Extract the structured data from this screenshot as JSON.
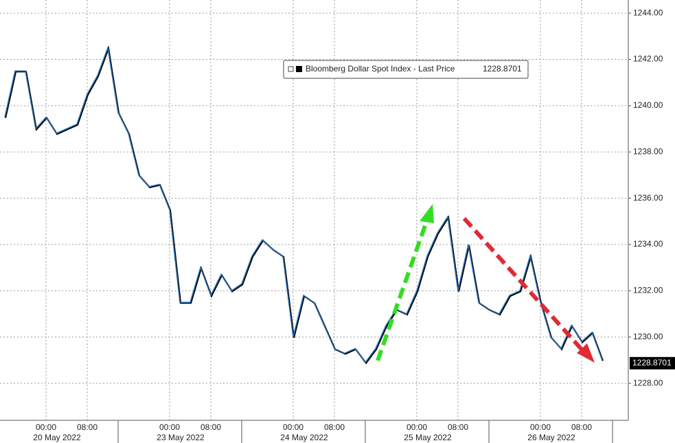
{
  "chart_data": {
    "type": "line",
    "categories": [
      null,
      null,
      null,
      null,
      "00:00",
      null,
      null,
      null,
      "08:00",
      null,
      null,
      null,
      null,
      null,
      null,
      null,
      "00:00",
      null,
      null,
      null,
      "08:00",
      null,
      null,
      null,
      null,
      null,
      null,
      null,
      "00:00",
      null,
      null,
      null,
      "08:00",
      null,
      null,
      null,
      null,
      null,
      null,
      null,
      "00:00",
      null,
      null,
      null,
      "08:00",
      null,
      null,
      null,
      null,
      null,
      null,
      null,
      "00:00",
      null,
      null,
      null,
      "08:00",
      null,
      null
    ],
    "dates": [
      "20 May 2022",
      "23 May 2022",
      "24 May 2022",
      "25 May 2022",
      "26 May 2022"
    ],
    "series": [
      {
        "name": "Bloomberg Dollar Spot Index - Last Price",
        "color": "#2b6cb0",
        "values": [
          1239.5,
          1241.5,
          1241.5,
          1239,
          1239.5,
          1238.8,
          1239,
          1239.2,
          1240.5,
          1241.3,
          1242.5,
          1239.7,
          1238.8,
          1237,
          1236.5,
          1236.6,
          1235.5,
          1231.5,
          1231.5,
          1233,
          1231.8,
          1232.7,
          1232,
          1232.3,
          1233.5,
          1234.2,
          1233.8,
          1233.5,
          1230,
          1231.8,
          1231.5,
          1230.5,
          1229.5,
          1229.3,
          1229.5,
          1228.9,
          1229.5,
          1230.5,
          1231.2,
          1231,
          1232,
          1233.5,
          1234.5,
          1235.2,
          1232,
          1234,
          1231.5,
          1231.2,
          1231,
          1231.8,
          1232,
          1233.5,
          1231.5,
          1230,
          1229.5,
          1230.5,
          1229.8,
          1230.2,
          1229
        ]
      }
    ],
    "last_price": 1228.8701,
    "ylim": [
      1226.4,
      1244.3
    ],
    "yticks": [
      {
        "value": 1228,
        "label": "1228.00"
      },
      {
        "value": 1230,
        "label": "1230.00"
      },
      {
        "value": 1232,
        "label": "1232.00"
      },
      {
        "value": 1234,
        "label": "1234.00"
      },
      {
        "value": 1236,
        "label": "1236.00"
      },
      {
        "value": 1238,
        "label": "1238.00"
      },
      {
        "value": 1240,
        "label": "1240.00"
      },
      {
        "value": 1242,
        "label": "1242.00"
      },
      {
        "value": 1244,
        "label": "1244.00"
      }
    ],
    "grid": true
  }
}
